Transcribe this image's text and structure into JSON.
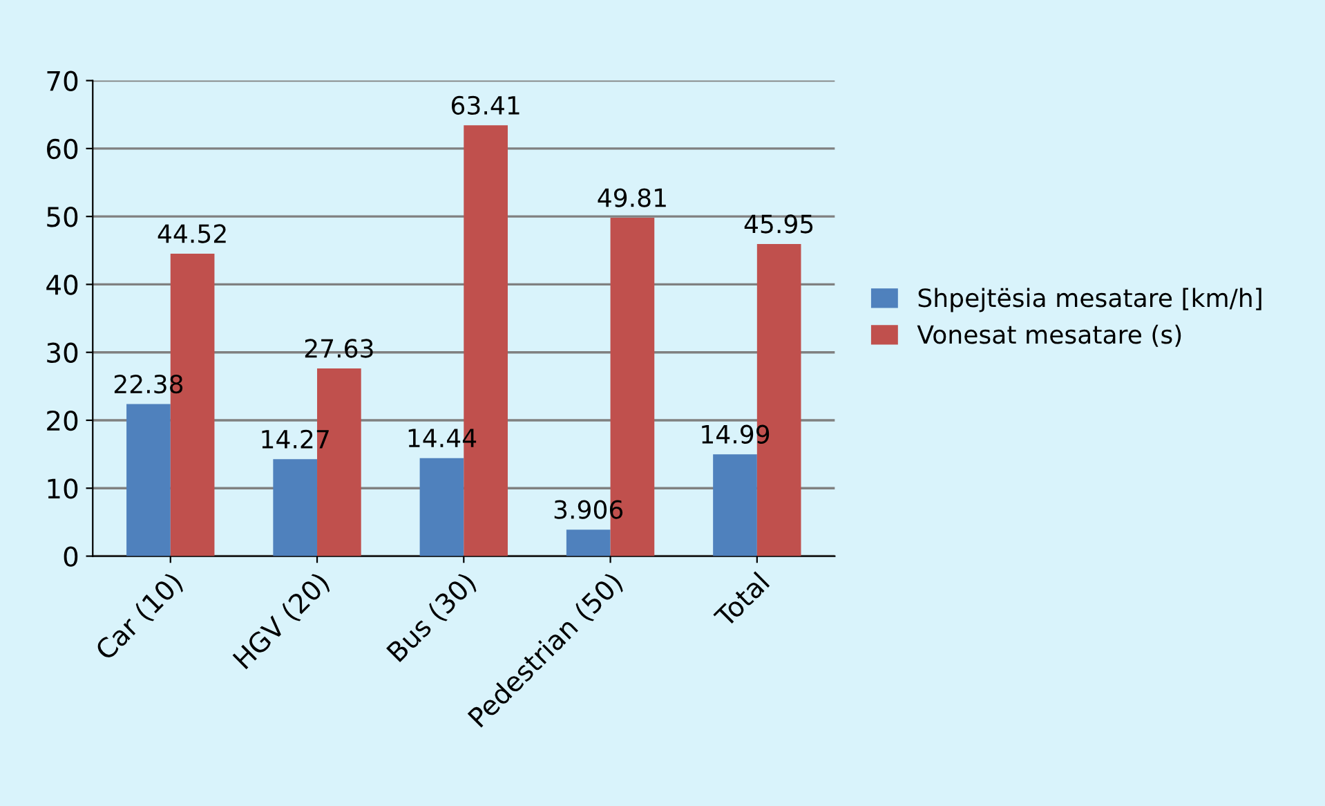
{
  "chart_data": {
    "type": "bar",
    "categories": [
      "Car (10)",
      "HGV (20)",
      "Bus (30)",
      "Pedestrian (50)",
      "Total"
    ],
    "series": [
      {
        "name": "Shpejtësia mesatare [km/h]",
        "color": "#4f81bd",
        "values": [
          22.38,
          14.27,
          14.44,
          3.906,
          14.99
        ]
      },
      {
        "name": "Vonesat mesatare (s)",
        "color": "#c0504d",
        "values": [
          44.52,
          27.63,
          63.41,
          49.81,
          45.95
        ]
      }
    ],
    "ylim": [
      0,
      70
    ],
    "yticks": [
      0,
      10,
      20,
      30,
      40,
      50,
      60,
      70
    ],
    "grid": "y",
    "legend": "right",
    "data_labels": true
  }
}
